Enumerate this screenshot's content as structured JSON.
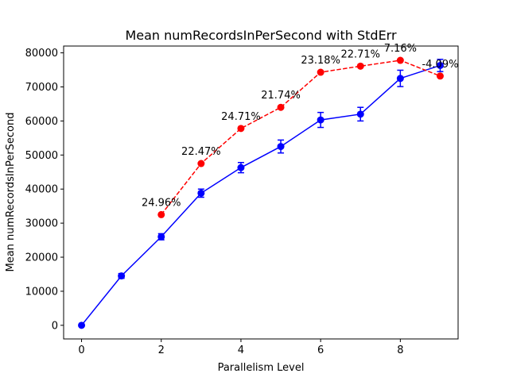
{
  "chart_data": {
    "type": "line",
    "title": "Mean numRecordsInPerSecond with StdErr",
    "xlabel": "Parallelism Level",
    "ylabel": "Mean numRecordsInPerSecond",
    "xlim": [
      -0.45,
      9.45
    ],
    "ylim": [
      -4000,
      82000
    ],
    "x_ticks": [
      0,
      2,
      4,
      6,
      8
    ],
    "y_ticks": [
      0,
      10000,
      20000,
      30000,
      40000,
      50000,
      60000,
      70000,
      80000
    ],
    "grid": false,
    "series": [
      {
        "color": "#0000ff",
        "linestyle": "solid",
        "x": [
          0,
          1,
          2,
          3,
          4,
          5,
          6,
          7,
          8,
          9
        ],
        "y": [
          0,
          14500,
          26000,
          38800,
          46300,
          52500,
          60300,
          62000,
          72500,
          76300
        ],
        "yerr": [
          0,
          700,
          900,
          1200,
          1500,
          1900,
          2200,
          2000,
          2400,
          1800
        ]
      },
      {
        "color": "#ff0000",
        "linestyle": "dashed",
        "x": [
          2,
          3,
          4,
          5,
          6,
          7,
          8,
          9
        ],
        "y": [
          32500,
          47500,
          57800,
          64000,
          74300,
          76100,
          77800,
          73200
        ]
      }
    ],
    "annotations": [
      {
        "x": 2,
        "y": 32500,
        "text": "24.96%"
      },
      {
        "x": 3,
        "y": 47500,
        "text": "22.47%"
      },
      {
        "x": 4,
        "y": 57800,
        "text": "24.71%"
      },
      {
        "x": 5,
        "y": 64000,
        "text": "21.74%"
      },
      {
        "x": 6,
        "y": 74300,
        "text": "23.18%"
      },
      {
        "x": 7,
        "y": 76100,
        "text": "22.71%"
      },
      {
        "x": 8,
        "y": 77800,
        "text": "7.16%"
      },
      {
        "x": 9,
        "y": 73200,
        "text": "-4.09%"
      }
    ]
  }
}
